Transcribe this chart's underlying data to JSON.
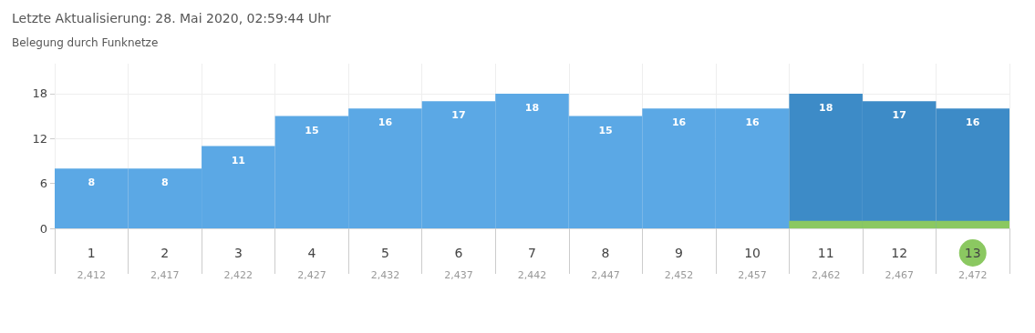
{
  "chart_data": {
    "type": "bar",
    "title": "Letzte Aktualisierung: 28. Mai 2020, 02:59:44 Uhr",
    "subtitle": "Belegung durch Funknetze",
    "categories": [
      "1\n2,412",
      "2\n2,417",
      "3\n2,422",
      "4\n2,427",
      "5\n2,432",
      "6\n2,437",
      "7\n2,442",
      "8\n2,447",
      "9\n2,452",
      "10\n2,457",
      "11\n2,462",
      "12\n2,467",
      "13\n2,472"
    ],
    "series": [
      {
        "colors": [
          "#5ba8e5",
          "#5ba8e5",
          "#5ba8e5",
          "#5ba8e5",
          "#5ba8e5",
          "#5ba8e5",
          "#5ba8e5",
          "#5ba8e5",
          "#5ba8e5",
          "#5ba8e5",
          "#3d8bc7",
          "#3d8bc7",
          "#3d8bc7"
        ],
        "values": [
          8,
          8,
          11,
          15,
          16,
          17,
          18,
          15,
          16,
          16,
          18,
          17,
          16
        ],
        "data_labels": true
      },
      {
        "color": "#8bc861",
        "values": [
          null,
          null,
          null,
          null,
          null,
          null,
          null,
          null,
          null,
          null,
          1,
          1,
          1
        ]
      }
    ],
    "ylim": [
      0,
      22
    ],
    "yticks": [
      0,
      6,
      12,
      18
    ],
    "grid": true
  }
}
